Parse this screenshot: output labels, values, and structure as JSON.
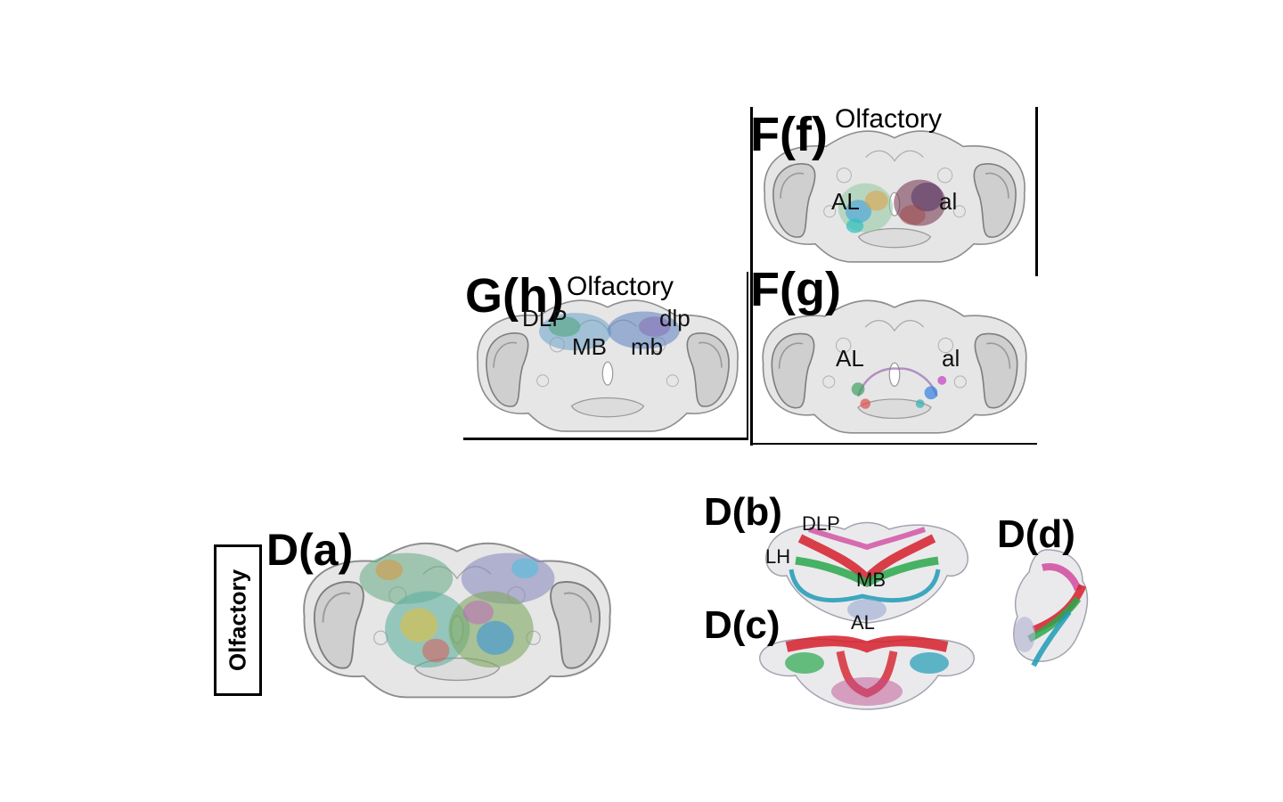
{
  "panels": {
    "f": {
      "label": "F(f)",
      "title": "Olfactory",
      "regions": [
        "AL",
        "al"
      ]
    },
    "g": {
      "label": "F(g)",
      "regions": [
        "AL",
        "al"
      ]
    },
    "h": {
      "label": "G(h)",
      "title": "Olfactory",
      "regions": [
        "DLP",
        "dlp",
        "MB",
        "mb"
      ]
    },
    "a": {
      "label": "D(a)",
      "side_label": "Olfactory"
    },
    "b": {
      "label": "D(b)",
      "regions": [
        "DLP",
        "LH",
        "MB",
        "AL"
      ]
    },
    "c": {
      "label": "D(c)"
    },
    "d": {
      "label": "D(d)"
    }
  },
  "colors": {
    "brain_fill": "#e4e4e4",
    "brain_stroke": "#8a8a8a",
    "tract_red": "#d6202a",
    "tract_green": "#2aa84a",
    "tract_cyan": "#1f9bb5",
    "tract_magenta": "#d0409a"
  }
}
